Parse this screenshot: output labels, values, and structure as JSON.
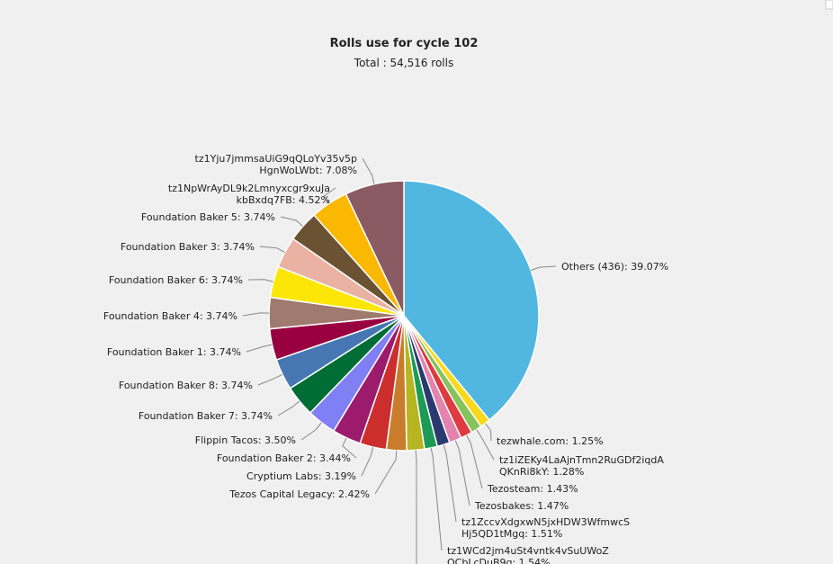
{
  "chart_data": {
    "type": "pie",
    "title": "Rolls use for cycle 102",
    "subtitle": "Total : 54,516 rolls",
    "labels": [
      [
        "Others (436): 39.07%"
      ],
      [
        "tezwhale.com: 1.25%"
      ],
      [
        "tz1iZEKy4LaAjnTmn2RuGDf2iqdA",
        "QKnRi8kY: 1.28%"
      ],
      [
        "Tezosteam: 1.43%"
      ],
      [
        "Tezosbakes: 1.47%"
      ],
      [
        "tz1ZccvXdgxwN5jxHDW3WfmwcS",
        "Hj5QD1tMgq: 1.51%"
      ],
      [
        "tz1WCd2jm4uSt4vntk4vSuUWoZ",
        "QCbLcDuB9q: 1.54%"
      ],
      null,
      [
        "Tezos Capital Legacy: 2.42%"
      ],
      [
        "Cryptium Labs: 3.19%"
      ],
      [
        "Foundation Baker 2: 3.44%"
      ],
      [
        "Flippin Tacos: 3.50%"
      ],
      [
        "Foundation Baker 7: 3.74%"
      ],
      [
        "Foundation Baker 8: 3.74%"
      ],
      [
        "Foundation Baker 1: 3.74%"
      ],
      [
        "Foundation Baker 4: 3.74%"
      ],
      [
        "Foundation Baker 6: 3.74%"
      ],
      [
        "Foundation Baker 3: 3.74%"
      ],
      [
        "Foundation Baker 5: 3.74%"
      ],
      [
        "tz1NpWrAyDL9k2Lmnyxcgr9xuJa",
        "kbBxdq7FB: 4.52%"
      ],
      [
        "tz1Yju7jmmsaUiG9qQLoYv35v5p",
        "HgnWoLWbt: 7.08%"
      ]
    ],
    "values": [
      39.07,
      1.25,
      1.28,
      1.43,
      1.47,
      1.51,
      1.54,
      2.12,
      2.42,
      3.19,
      3.44,
      3.5,
      3.74,
      3.74,
      3.74,
      3.74,
      3.74,
      3.74,
      3.74,
      4.52,
      7.08
    ],
    "colors": [
      "#51b7e0",
      "#f8d81a",
      "#86c35a",
      "#de3a3f",
      "#e383ae",
      "#2b3a6e",
      "#1c9a56",
      "#b7b520",
      "#c97c2b",
      "#cc2e2e",
      "#9c1b6c",
      "#8080f4",
      "#006d36",
      "#4677b3",
      "#980040",
      "#9f7a6e",
      "#fce608",
      "#e9b2a2",
      "#6a5232",
      "#fbb800",
      "#8a5b62"
    ]
  }
}
